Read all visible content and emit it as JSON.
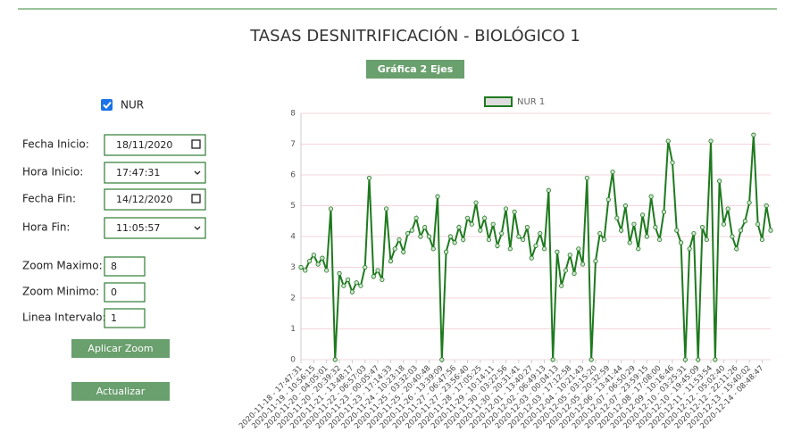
{
  "header": {
    "title": "TASAS DESNITRIFICACIÓN - BIOLÓGICO 1",
    "button": "Gráfica 2 Ejes"
  },
  "sidebar": {
    "checkbox": "NUR",
    "fields": [
      {
        "label": "Fecha Inicio:",
        "value": "18/11/2020"
      },
      {
        "label": "Hora Inicio:",
        "value": "17:47:31"
      },
      {
        "label": "Fecha Fin:",
        "value": "14/12/2020"
      },
      {
        "label": "Hora Fin:",
        "value": "11:05:57"
      },
      {
        "label": "Zoom Maximo:",
        "value": "8"
      },
      {
        "label": "Zoom Minimo:",
        "value": "0"
      },
      {
        "label": "Linea Intervalo:",
        "value": "1"
      }
    ],
    "buttons": [
      "Aplicar Zoom",
      "Actualizar"
    ]
  },
  "chart_data": {
    "type": "line",
    "categories": [
      "2020-11-18 - 17:47:31",
      null,
      null,
      "2020-11-19 - 10:56:15",
      null,
      null,
      "2020-11-20 - 04:05:01",
      null,
      null,
      "2020-11-20 - 20:39:32",
      null,
      null,
      "2020-11-21 - 13:48:17",
      null,
      null,
      "2020-11-22 - 06:57:03",
      null,
      null,
      "2020-11-23 - 00:05:47",
      null,
      null,
      "2020-11-23 - 17:14:33",
      null,
      null,
      "2020-11-24 - 10:23:18",
      null,
      null,
      "2020-11-25 - 03:32:03",
      null,
      null,
      "2020-11-25 - 20:40:48",
      null,
      null,
      "2020-11-26 - 13:39:09",
      null,
      null,
      "2020-11-27 - 06:47:56",
      null,
      null,
      "2020-11-27 - 23:56:40",
      null,
      null,
      "2020-11-28 - 17:05:25",
      null,
      null,
      "2020-11-29 - 10:14:11",
      null,
      null,
      "2020-11-30 - 03:22:56",
      null,
      null,
      "2020-11-30 - 20:31:41",
      null,
      null,
      "2020-12-01 - 13:40:27",
      null,
      null,
      "2020-12-02 - 06:49:13",
      null,
      null,
      "2020-12-03 - 00:04:13",
      null,
      null,
      "2020-12-03 - 17:12:58",
      null,
      null,
      "2020-12-04 - 10:21:43",
      null,
      null,
      "2020-12-05 - 03:15:20",
      null,
      null,
      "2020-12-05 - 20:32:59",
      null,
      null,
      "2020-12-06 - 13:41:44",
      null,
      null,
      "2020-12-07 - 06:50:29",
      null,
      null,
      "2020-12-07 - 23:59:15",
      null,
      null,
      "2020-12-08 - 17:08:00",
      null,
      null,
      "2020-12-09 - 10:16:46",
      null,
      null,
      "2020-12-10 - 03:25:31",
      null,
      null,
      "2020-12-10 - 19:45:09",
      null,
      null,
      "2020-12-11 - 11:53:54",
      null,
      null,
      "2020-12-12 - 05:02:40",
      null,
      null,
      "2020-12-12 - 22:11:26",
      null,
      null,
      "2020-12-13 - 15:40:02",
      null,
      null,
      "2020-12-14 - 08:48:47",
      null,
      null
    ],
    "series": [
      {
        "name": "NUR 1",
        "color": "#1e7a1e",
        "values": [
          3.0,
          2.9,
          3.2,
          3.4,
          3.1,
          3.3,
          2.9,
          4.9,
          0,
          2.8,
          2.4,
          2.6,
          2.2,
          2.5,
          2.4,
          3.0,
          5.9,
          2.7,
          2.9,
          2.6,
          4.9,
          3.2,
          3.6,
          3.9,
          3.5,
          4.1,
          4.2,
          4.6,
          4.0,
          4.3,
          4.0,
          3.6,
          5.3,
          0,
          3.5,
          4.0,
          3.8,
          4.3,
          3.9,
          4.6,
          4.4,
          5.1,
          4.2,
          4.6,
          3.9,
          4.4,
          3.7,
          4.1,
          4.9,
          3.6,
          4.8,
          4.0,
          3.9,
          4.3,
          3.3,
          3.7,
          4.1,
          3.6,
          5.5,
          0,
          3.5,
          2.4,
          2.9,
          3.4,
          2.8,
          3.6,
          3.1,
          5.9,
          0,
          3.2,
          4.1,
          3.9,
          5.2,
          6.1,
          4.6,
          4.2,
          5.0,
          3.8,
          4.4,
          3.6,
          4.7,
          4.0,
          5.3,
          4.3,
          3.9,
          4.8,
          7.1,
          6.4,
          4.2,
          3.8,
          0,
          3.6,
          4.1,
          0,
          4.3,
          3.9,
          7.1,
          0,
          5.8,
          4.4,
          4.9,
          4.0,
          3.6,
          4.2,
          4.5,
          5.1,
          7.3,
          4.4,
          3.9,
          5.0,
          4.2
        ]
      }
    ],
    "ylim": [
      0,
      8
    ],
    "yticks": [
      0,
      1,
      2,
      3,
      4,
      5,
      6,
      7,
      8
    ],
    "grid": true,
    "legend": "top"
  }
}
